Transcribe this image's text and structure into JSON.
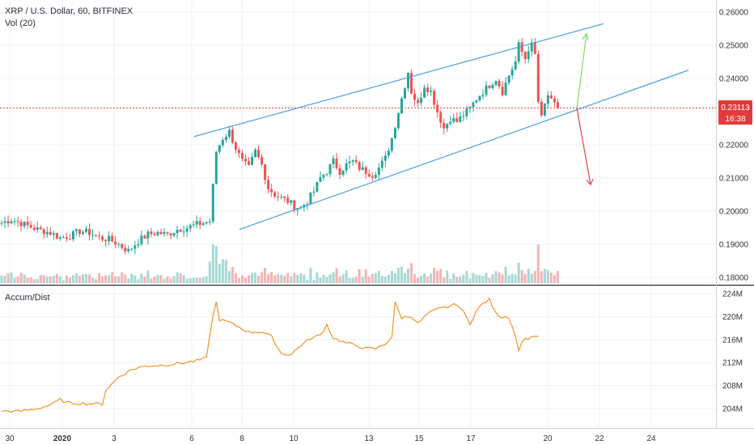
{
  "header": {
    "symbol_title": "XRP / U.S. Dollar, 60, BITFINEX",
    "volume_label": "Vol (20)",
    "indicator_label": "Accum/Dist"
  },
  "colors": {
    "up": "#26a69a",
    "down": "#ef5350",
    "channel": "#4a9fe0",
    "arrow_up": "#7ddc5a",
    "arrow_down": "#e0404f",
    "price_line": "#e33b3b",
    "accum_line": "#f0932b",
    "volume_up": "#a8d8d2",
    "volume_down": "#f4b4b4"
  },
  "price_badge": {
    "price": "0.23113",
    "countdown": "16:38"
  },
  "chart_data": [
    {
      "type": "candlestick",
      "title": "XRP / U.S. Dollar, 60, BITFINEX",
      "y_ticks": [
        "0.26000",
        "0.25000",
        "0.24000",
        "0.23000",
        "0.22000",
        "0.21000",
        "0.20000",
        "0.19000",
        "0.18000"
      ],
      "ylim": [
        0.177,
        0.262
      ],
      "x_ticks": [
        "30",
        "2020",
        "3",
        "6",
        "8",
        "10",
        "13",
        "15",
        "17",
        "20",
        "22",
        "24"
      ],
      "current_price": 0.23113,
      "price_path": [
        [
          0,
          0.1965
        ],
        [
          3,
          0.1975
        ],
        [
          7,
          0.196
        ],
        [
          11,
          0.1945
        ],
        [
          15,
          0.1935
        ],
        [
          18,
          0.192
        ],
        [
          21,
          0.1925
        ],
        [
          24,
          0.194
        ],
        [
          27,
          0.1935
        ],
        [
          30,
          0.192
        ],
        [
          33,
          0.1915
        ],
        [
          36,
          0.19
        ],
        [
          39,
          0.188
        ],
        [
          42,
          0.191
        ],
        [
          45,
          0.193
        ],
        [
          48,
          0.1935
        ],
        [
          51,
          0.193
        ],
        [
          54,
          0.1945
        ],
        [
          57,
          0.195
        ],
        [
          60,
          0.196
        ],
        [
          64,
          0.197
        ],
        [
          66,
          0.218
        ],
        [
          68,
          0.222
        ],
        [
          70,
          0.224
        ],
        [
          72,
          0.219
        ],
        [
          74,
          0.215
        ],
        [
          76,
          0.213
        ],
        [
          78,
          0.218
        ],
        [
          80,
          0.214
        ],
        [
          82,
          0.207
        ],
        [
          84,
          0.205
        ],
        [
          86,
          0.204
        ],
        [
          88,
          0.203
        ],
        [
          90,
          0.2015
        ],
        [
          92,
          0.201
        ],
        [
          94,
          0.203
        ],
        [
          96,
          0.206
        ],
        [
          98,
          0.21
        ],
        [
          100,
          0.212
        ],
        [
          102,
          0.215
        ],
        [
          104,
          0.212
        ],
        [
          106,
          0.214
        ],
        [
          108,
          0.215
        ],
        [
          110,
          0.213
        ],
        [
          112,
          0.212
        ],
        [
          114,
          0.211
        ],
        [
          116,
          0.213
        ],
        [
          118,
          0.216
        ],
        [
          120,
          0.222
        ],
        [
          122,
          0.23
        ],
        [
          124,
          0.238
        ],
        [
          125,
          0.242
        ],
        [
          126,
          0.236
        ],
        [
          128,
          0.232
        ],
        [
          130,
          0.238
        ],
        [
          132,
          0.236
        ],
        [
          134,
          0.23
        ],
        [
          136,
          0.225
        ],
        [
          138,
          0.228
        ],
        [
          140,
          0.227
        ],
        [
          142,
          0.229
        ],
        [
          144,
          0.231
        ],
        [
          146,
          0.234
        ],
        [
          148,
          0.236
        ],
        [
          150,
          0.238
        ],
        [
          152,
          0.24
        ],
        [
          154,
          0.236
        ],
        [
          156,
          0.241
        ],
        [
          158,
          0.245
        ],
        [
          159,
          0.25
        ],
        [
          160,
          0.248
        ],
        [
          161,
          0.246
        ],
        [
          162,
          0.249
        ],
        [
          163,
          0.25
        ],
        [
          164,
          0.247
        ],
        [
          165,
          0.233
        ],
        [
          166,
          0.228
        ],
        [
          167,
          0.232
        ],
        [
          168,
          0.235
        ],
        [
          169,
          0.233
        ],
        [
          170,
          0.232
        ],
        [
          171,
          0.2311
        ]
      ],
      "channel_upper": [
        [
          0.2225,
          0.58
        ],
        [
          0.2565,
          1.0
        ]
      ],
      "channel_lower": [
        [
          0.1945,
          0.63
        ],
        [
          0.2425,
          1.3
        ]
      ],
      "arrow_up": {
        "from": 0.2311,
        "to": 0.2535
      },
      "arrow_down": {
        "from": 0.2311,
        "to": 0.208
      }
    },
    {
      "type": "line",
      "title": "Accum/Dist",
      "y_ticks": [
        "224M",
        "220M",
        "216M",
        "212M",
        "208M",
        "204M"
      ],
      "ylim": [
        201.5,
        225.5
      ],
      "points": [
        [
          0,
          203.6
        ],
        [
          5,
          203.5
        ],
        [
          10,
          203.9
        ],
        [
          13,
          204.3
        ],
        [
          16,
          204.9
        ],
        [
          18,
          205.6
        ],
        [
          20,
          205.0
        ],
        [
          25,
          204.9
        ],
        [
          31,
          204.8
        ],
        [
          32,
          207.2
        ],
        [
          36,
          209.5
        ],
        [
          40,
          210.8
        ],
        [
          44,
          211.4
        ],
        [
          50,
          211.6
        ],
        [
          55,
          211.9
        ],
        [
          60,
          212.3
        ],
        [
          63,
          212.8
        ],
        [
          64,
          217.0
        ],
        [
          65,
          220.0
        ],
        [
          66,
          222.5
        ],
        [
          67,
          219.5
        ],
        [
          70,
          219.0
        ],
        [
          73,
          218.2
        ],
        [
          76,
          217.3
        ],
        [
          80,
          217.4
        ],
        [
          83,
          216.5
        ],
        [
          86,
          213.6
        ],
        [
          89,
          213.4
        ],
        [
          92,
          215.0
        ],
        [
          95,
          216.2
        ],
        [
          98,
          216.8
        ],
        [
          100,
          218.6
        ],
        [
          102,
          216.3
        ],
        [
          105,
          215.6
        ],
        [
          108,
          215.1
        ],
        [
          112,
          214.5
        ],
        [
          115,
          214.4
        ],
        [
          118,
          215.3
        ],
        [
          120,
          216.5
        ],
        [
          121,
          222.4
        ],
        [
          123,
          219.8
        ],
        [
          126,
          220.1
        ],
        [
          128,
          218.8
        ],
        [
          131,
          220.5
        ],
        [
          134,
          221.3
        ],
        [
          137,
          221.7
        ],
        [
          140,
          222.2
        ],
        [
          142,
          220.8
        ],
        [
          144,
          218.8
        ],
        [
          146,
          221.0
        ],
        [
          148,
          222.3
        ],
        [
          150,
          223.0
        ],
        [
          152,
          220.5
        ],
        [
          154,
          219.9
        ],
        [
          155,
          220.2
        ],
        [
          156,
          219.6
        ],
        [
          157,
          218.5
        ],
        [
          158,
          216.6
        ],
        [
          159,
          214.0
        ],
        [
          160,
          215.8
        ],
        [
          162,
          216.3
        ],
        [
          164,
          216.7
        ],
        [
          165,
          216.6
        ]
      ]
    }
  ]
}
